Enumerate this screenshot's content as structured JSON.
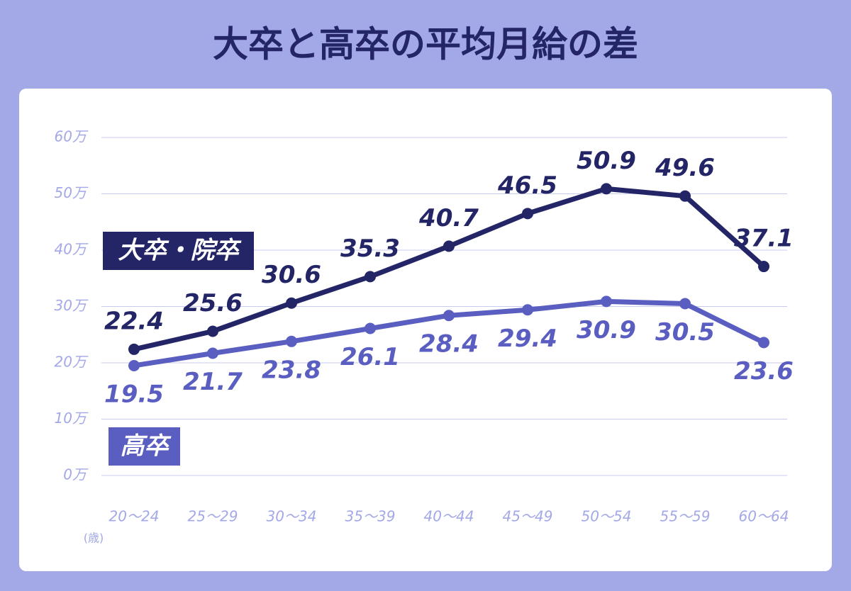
{
  "chart_data": {
    "type": "line",
    "title": "大卒と高卒の平均月給の差",
    "x_label": "(歳)",
    "categories": [
      "20〜24",
      "25〜29",
      "30〜34",
      "35〜39",
      "40〜44",
      "45〜49",
      "50〜54",
      "55〜59",
      "60〜64"
    ],
    "series": [
      {
        "name": "大卒・院卒",
        "color": "#232566",
        "values": [
          22.4,
          25.6,
          30.6,
          35.3,
          40.7,
          46.5,
          50.9,
          49.6,
          37.1
        ]
      },
      {
        "name": "高卒",
        "color": "#5a5ec0",
        "values": [
          19.5,
          21.7,
          23.8,
          26.1,
          28.4,
          29.4,
          30.9,
          30.5,
          23.6
        ]
      }
    ],
    "ylim": [
      0,
      60
    ],
    "yticks": [
      {
        "value": 0,
        "label": "0万"
      },
      {
        "value": 10,
        "label": "10万"
      },
      {
        "value": 20,
        "label": "20万"
      },
      {
        "value": 30,
        "label": "30万"
      },
      {
        "value": 40,
        "label": "40万"
      },
      {
        "value": 50,
        "label": "50万"
      },
      {
        "value": 60,
        "label": "60万"
      }
    ],
    "grid": true
  }
}
